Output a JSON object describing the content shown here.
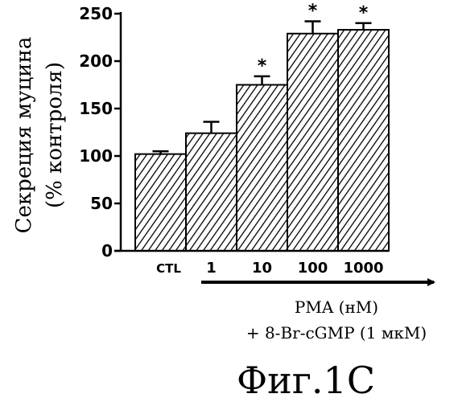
{
  "chart_data": {
    "type": "bar",
    "categories": [
      "CTL",
      "1",
      "10",
      "100",
      "1000"
    ],
    "values": [
      102,
      124,
      175,
      229,
      233
    ],
    "errors": [
      3,
      12,
      9,
      13,
      7
    ],
    "significant": [
      false,
      false,
      true,
      true,
      true
    ],
    "significance_marker": "*",
    "ylim": [
      0,
      250
    ],
    "yticks": [
      "0",
      "50",
      "100",
      "150",
      "200",
      "250"
    ],
    "ylabel_line1": "Секреция муцина",
    "ylabel_line2": "(% контроля)",
    "xlabel_line1": "PMA (нМ)",
    "xlabel_line2": "+ 8-Br-cGMP (1 мкМ)",
    "grid": false,
    "bar_pattern": "diagonal-hatch"
  },
  "figure_label": "Фиг.1C",
  "colors": {
    "ink": "#000000",
    "background": "#ffffff"
  }
}
